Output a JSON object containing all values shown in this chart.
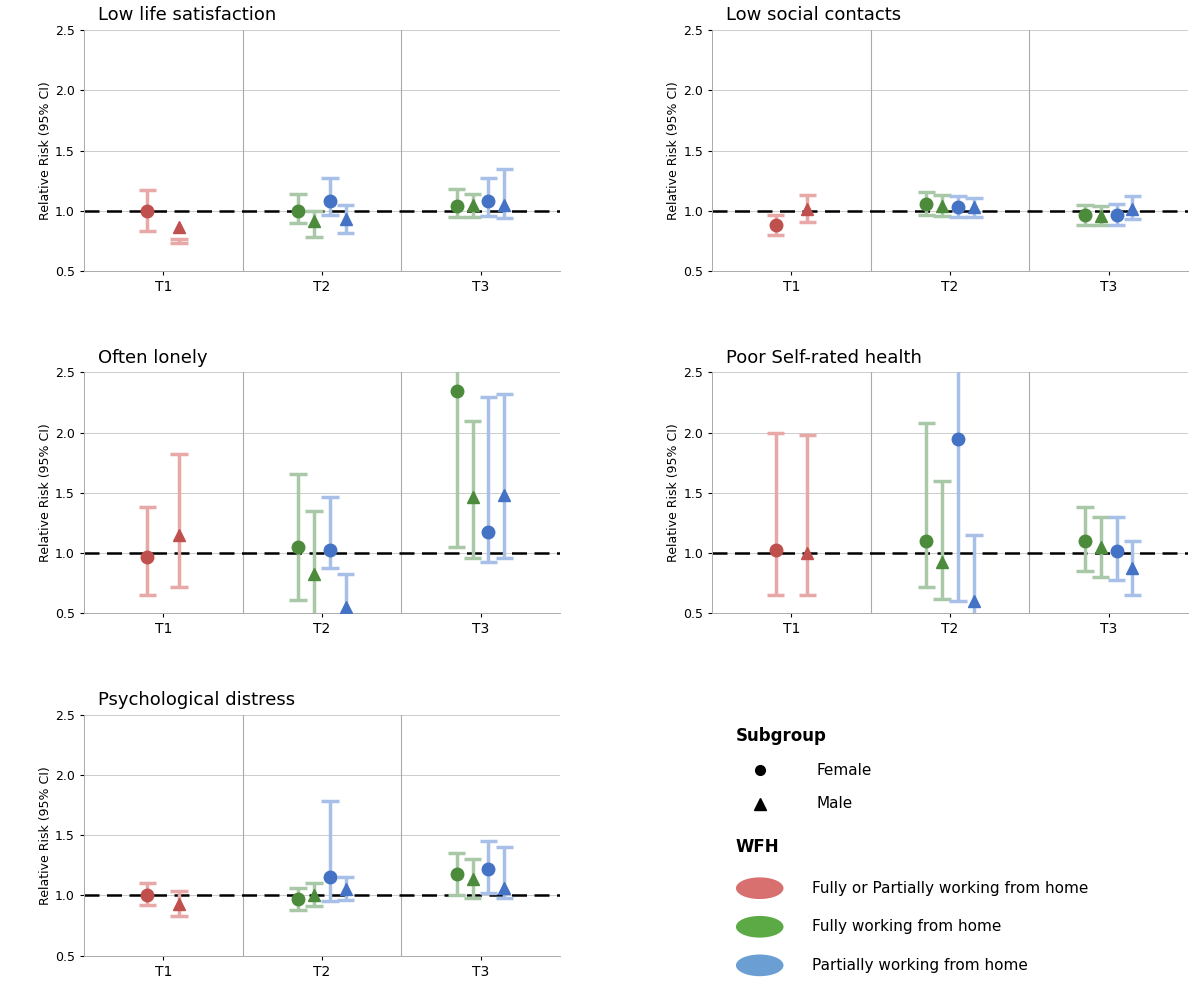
{
  "panels": [
    {
      "title": "Low life satisfaction",
      "grid": [
        0,
        0
      ],
      "data": {
        "T1": [
          {
            "key": "red_female",
            "est": 1.0,
            "lo": 0.83,
            "hi": 1.17
          },
          {
            "key": "red_male",
            "est": 0.87,
            "lo": 0.73,
            "hi": 0.77
          }
        ],
        "T2": [
          {
            "key": "green_female",
            "est": 1.0,
            "lo": 0.9,
            "hi": 1.14
          },
          {
            "key": "green_male",
            "est": 0.92,
            "lo": 0.78,
            "hi": 1.0
          },
          {
            "key": "blue_female",
            "est": 1.08,
            "lo": 0.97,
            "hi": 1.27
          },
          {
            "key": "blue_male",
            "est": 0.93,
            "lo": 0.82,
            "hi": 1.05
          }
        ],
        "T3": [
          {
            "key": "green_female",
            "est": 1.04,
            "lo": 0.95,
            "hi": 1.18
          },
          {
            "key": "green_male",
            "est": 1.05,
            "lo": 0.95,
            "hi": 1.14
          },
          {
            "key": "blue_female",
            "est": 1.08,
            "lo": 0.96,
            "hi": 1.27
          },
          {
            "key": "blue_male",
            "est": 1.05,
            "lo": 0.94,
            "hi": 1.35
          }
        ]
      }
    },
    {
      "title": "Low social contacts",
      "grid": [
        0,
        1
      ],
      "data": {
        "T1": [
          {
            "key": "red_female",
            "est": 0.88,
            "lo": 0.8,
            "hi": 0.97
          },
          {
            "key": "red_male",
            "est": 1.02,
            "lo": 0.91,
            "hi": 1.13
          }
        ],
        "T2": [
          {
            "key": "green_female",
            "est": 1.06,
            "lo": 0.97,
            "hi": 1.16
          },
          {
            "key": "green_male",
            "est": 1.04,
            "lo": 0.96,
            "hi": 1.13
          },
          {
            "key": "blue_female",
            "est": 1.03,
            "lo": 0.95,
            "hi": 1.12
          },
          {
            "key": "blue_male",
            "est": 1.03,
            "lo": 0.95,
            "hi": 1.11
          }
        ],
        "T3": [
          {
            "key": "green_female",
            "est": 0.97,
            "lo": 0.88,
            "hi": 1.05
          },
          {
            "key": "green_male",
            "est": 0.96,
            "lo": 0.88,
            "hi": 1.04
          },
          {
            "key": "blue_female",
            "est": 0.97,
            "lo": 0.88,
            "hi": 1.06
          },
          {
            "key": "blue_male",
            "est": 1.02,
            "lo": 0.93,
            "hi": 1.12
          }
        ]
      }
    },
    {
      "title": "Often lonely",
      "grid": [
        1,
        0
      ],
      "data": {
        "T1": [
          {
            "key": "red_female",
            "est": 0.97,
            "lo": 0.65,
            "hi": 1.38
          },
          {
            "key": "red_male",
            "est": 1.15,
            "lo": 0.72,
            "hi": 1.82
          }
        ],
        "T2": [
          {
            "key": "green_female",
            "est": 1.05,
            "lo": 0.61,
            "hi": 1.66
          },
          {
            "key": "green_male",
            "est": 0.83,
            "lo": 0.49,
            "hi": 1.35
          },
          {
            "key": "blue_female",
            "est": 1.03,
            "lo": 0.88,
            "hi": 1.47
          },
          {
            "key": "blue_male",
            "est": 0.55,
            "lo": 0.37,
            "hi": 0.83
          }
        ],
        "T3": [
          {
            "key": "green_female",
            "est": 2.35,
            "lo": 1.05,
            "hi": 2.7
          },
          {
            "key": "green_male",
            "est": 1.47,
            "lo": 0.96,
            "hi": 2.1
          },
          {
            "key": "blue_female",
            "est": 1.18,
            "lo": 0.93,
            "hi": 2.3
          },
          {
            "key": "blue_male",
            "est": 1.48,
            "lo": 0.96,
            "hi": 2.32
          }
        ]
      }
    },
    {
      "title": "Poor Self-rated health",
      "grid": [
        1,
        1
      ],
      "data": {
        "T1": [
          {
            "key": "red_female",
            "est": 1.03,
            "lo": 0.65,
            "hi": 2.0
          },
          {
            "key": "red_male",
            "est": 1.0,
            "lo": 0.65,
            "hi": 1.98
          }
        ],
        "T2": [
          {
            "key": "green_female",
            "est": 1.1,
            "lo": 0.72,
            "hi": 2.08
          },
          {
            "key": "green_male",
            "est": 0.93,
            "lo": 0.62,
            "hi": 1.6
          },
          {
            "key": "blue_female",
            "est": 1.95,
            "lo": 0.6,
            "hi": 2.6
          },
          {
            "key": "blue_male",
            "est": 0.6,
            "lo": 0.38,
            "hi": 1.15
          }
        ],
        "T3": [
          {
            "key": "green_female",
            "est": 1.1,
            "lo": 0.85,
            "hi": 1.38
          },
          {
            "key": "green_male",
            "est": 1.05,
            "lo": 0.8,
            "hi": 1.3
          },
          {
            "key": "blue_female",
            "est": 1.02,
            "lo": 0.78,
            "hi": 1.3
          },
          {
            "key": "blue_male",
            "est": 0.88,
            "lo": 0.65,
            "hi": 1.1
          }
        ]
      }
    },
    {
      "title": "Psychological distress",
      "grid": [
        2,
        0
      ],
      "data": {
        "T1": [
          {
            "key": "red_female",
            "est": 1.0,
            "lo": 0.92,
            "hi": 1.1
          },
          {
            "key": "red_male",
            "est": 0.93,
            "lo": 0.83,
            "hi": 1.04
          }
        ],
        "T2": [
          {
            "key": "green_female",
            "est": 0.97,
            "lo": 0.88,
            "hi": 1.06
          },
          {
            "key": "green_male",
            "est": 1.0,
            "lo": 0.91,
            "hi": 1.1
          },
          {
            "key": "blue_female",
            "est": 1.15,
            "lo": 0.95,
            "hi": 1.78
          },
          {
            "key": "blue_male",
            "est": 1.05,
            "lo": 0.96,
            "hi": 1.15
          }
        ],
        "T3": [
          {
            "key": "green_female",
            "est": 1.18,
            "lo": 1.0,
            "hi": 1.35
          },
          {
            "key": "green_male",
            "est": 1.14,
            "lo": 0.98,
            "hi": 1.3
          },
          {
            "key": "blue_female",
            "est": 1.22,
            "lo": 1.02,
            "hi": 1.45
          },
          {
            "key": "blue_male",
            "est": 1.06,
            "lo": 0.98,
            "hi": 1.4
          }
        ]
      }
    }
  ],
  "colors": {
    "red_female": {
      "ci": "#E8A8A8",
      "marker": "#C0504D"
    },
    "red_male": {
      "ci": "#E8A8A8",
      "marker": "#C0504D"
    },
    "green_female": {
      "ci": "#A8C8A8",
      "marker": "#4B8B3B"
    },
    "green_male": {
      "ci": "#A8C8A8",
      "marker": "#4B8B3B"
    },
    "blue_female": {
      "ci": "#A8C0E8",
      "marker": "#4472C4"
    },
    "blue_male": {
      "ci": "#A8C0E8",
      "marker": "#4472C4"
    }
  },
  "legend_colors": {
    "red": "#D87070",
    "green": "#5BAA45",
    "blue": "#6B9FD4"
  },
  "ylabel": "Relative Risk (95% CI)",
  "ylim": [
    0.5,
    2.5
  ],
  "yticks": [
    0.5,
    1.0,
    1.5,
    2.0,
    2.5
  ],
  "xtick_labels": [
    "T1",
    "T2",
    "T3"
  ],
  "x_offsets": {
    "T1": {
      "red_female": -0.1,
      "red_male": 0.1
    },
    "T2": {
      "green_female": -0.15,
      "green_male": -0.05,
      "blue_female": 0.05,
      "blue_male": 0.15
    },
    "T3": {
      "green_female": -0.15,
      "green_male": -0.05,
      "blue_female": 0.05,
      "blue_male": 0.15
    }
  }
}
